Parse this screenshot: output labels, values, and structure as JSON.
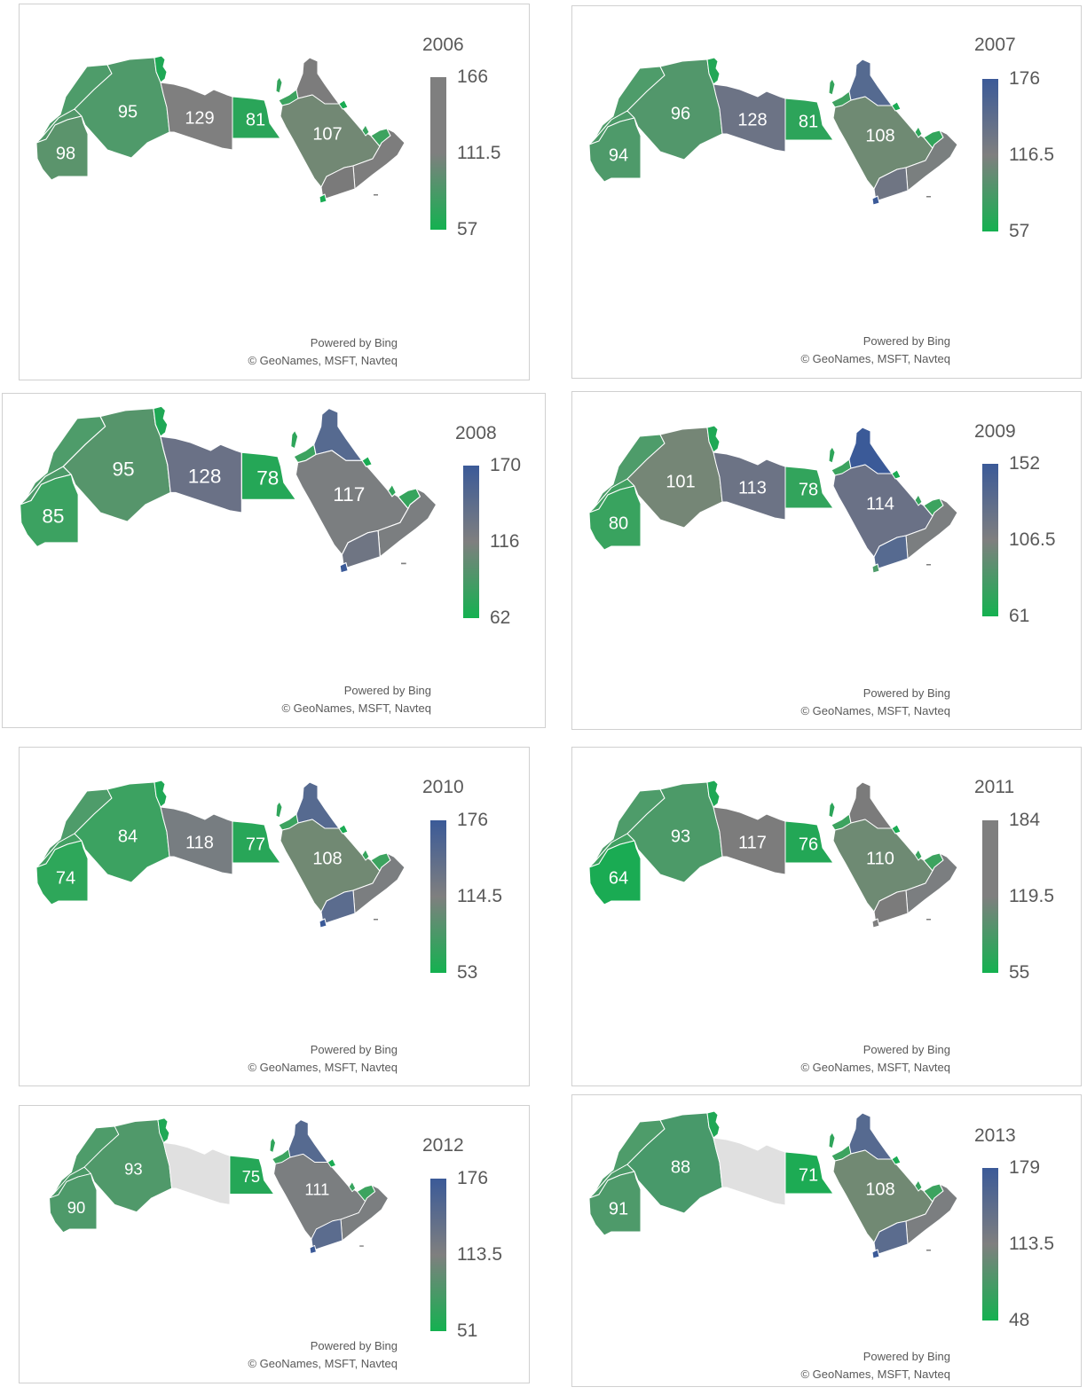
{
  "credits": {
    "line1": "Powered by Bing",
    "line2": "© GeoNames, MSFT, Navteq"
  },
  "colors": {
    "low": "#14b150",
    "mid": "#7f7f7f",
    "high": "#3b5a98",
    "no_data": "#e0e0e0"
  },
  "maps": [
    {
      "year": "2006",
      "legend": {
        "max": "166",
        "mid": "111.5",
        "min": "57"
      },
      "legend_top_color": "#7f7f7f",
      "labels": {
        "mauritania": "98",
        "algeria": "95",
        "libya": "129",
        "egypt": "81",
        "saudi": "107"
      },
      "colors": {
        "morocco": "#4e9c6a",
        "w_sahara": "#52986a",
        "mauritania": "#5b946c",
        "algeria": "#4f9a6a",
        "tunisia": "#1fa855",
        "libya": "#7f7f7f",
        "egypt": "#2aa559",
        "levant": "#34a45c",
        "jordan": "#3ca35f",
        "iraq": "#7c7c7c",
        "saudi": "#728874",
        "kuwait": "#1aab53",
        "qatar": "#38a45f",
        "uae": "#3ca35f",
        "oman": "#7d7d7d",
        "yemen": "#7a7a7a",
        "comoros": "#1aab53"
      }
    },
    {
      "year": "2007",
      "legend": {
        "max": "176",
        "mid": "116.5",
        "min": "57"
      },
      "legend_top_color": "#3b5a98",
      "labels": {
        "mauritania": "94",
        "algeria": "96",
        "libya": "128",
        "egypt": "81",
        "saudi": "108"
      },
      "colors": {
        "morocco": "#4e9c6a",
        "w_sahara": "#4c9a68",
        "mauritania": "#4e9a6a",
        "algeria": "#52976b",
        "tunisia": "#23a756",
        "libya": "#6c7385",
        "egypt": "#2da45a",
        "levant": "#35a45c",
        "jordan": "#40a160",
        "iraq": "#556a90",
        "saudi": "#6f8a73",
        "kuwait": "#1aab53",
        "qatar": "#2ea75a",
        "uae": "#32a55b",
        "oman": "#7a7f7f",
        "yemen": "#6f7583",
        "comoros": "#3b5a98"
      }
    },
    {
      "year": "2008",
      "legend": {
        "max": "170",
        "mid": "116",
        "min": "62"
      },
      "legend_top_color": "#3b5a98",
      "labels": {
        "mauritania": "85",
        "algeria": "95",
        "libya": "128",
        "egypt": "78",
        "saudi": "117"
      },
      "colors": {
        "morocco": "#4e9c6a",
        "w_sahara": "#4c9a68",
        "mauritania": "#3ca261",
        "algeria": "#56956b",
        "tunisia": "#1fa855",
        "libya": "#6a7186",
        "egypt": "#25a757",
        "levant": "#2da55a",
        "jordan": "#3ca35f",
        "iraq": "#566a90",
        "saudi": "#7b7e80",
        "kuwait": "#1aab53",
        "qatar": "#30a55b",
        "uae": "#36a45d",
        "oman": "#7b7e80",
        "yemen": "#6f7583",
        "comoros": "#3b5a98"
      }
    },
    {
      "year": "2009",
      "legend": {
        "max": "152",
        "mid": "106.5",
        "min": "61"
      },
      "legend_top_color": "#3b5a98",
      "labels": {
        "mauritania": "80",
        "algeria": "101",
        "libya": "113",
        "egypt": "78",
        "saudi": "114"
      },
      "colors": {
        "morocco": "#4e9c6a",
        "w_sahara": "#42a062",
        "mauritania": "#39a35f",
        "algeria": "#758676",
        "tunisia": "#1fa855",
        "libya": "#6c7385",
        "egypt": "#32a45c",
        "levant": "#2ea55a",
        "jordan": "#3ca35f",
        "iraq": "#3b5a98",
        "saudi": "#6a7186",
        "kuwait": "#1aab53",
        "qatar": "#38a45f",
        "uae": "#3ca35f",
        "oman": "#7b7e80",
        "yemen": "#566a90",
        "comoros": "#4e9c6a"
      }
    },
    {
      "year": "2010",
      "legend": {
        "max": "176",
        "mid": "114.5",
        "min": "53"
      },
      "legend_top_color": "#3b5a98",
      "labels": {
        "mauritania": "74",
        "algeria": "84",
        "libya": "118",
        "egypt": "77",
        "saudi": "108"
      },
      "colors": {
        "morocco": "#4e9c6a",
        "w_sahara": "#43a063",
        "mauritania": "#2ea75a",
        "algeria": "#3ca261",
        "tunisia": "#1fa855",
        "libya": "#777d81",
        "egypt": "#28a658",
        "levant": "#30a55b",
        "jordan": "#3ca35f",
        "iraq": "#566a90",
        "saudi": "#718973",
        "kuwait": "#1aab53",
        "qatar": "#36a45d",
        "uae": "#3ca35f",
        "oman": "#7b7e80",
        "yemen": "#5b6c8e",
        "comoros": "#3b5a98"
      }
    },
    {
      "year": "2011",
      "legend": {
        "max": "184",
        "mid": "119.5",
        "min": "55"
      },
      "legend_top_color": "#7f7f7f",
      "labels": {
        "mauritania": "64",
        "algeria": "93",
        "libya": "117",
        "egypt": "76",
        "saudi": "110"
      },
      "colors": {
        "morocco": "#4e9c6a",
        "w_sahara": "#40a061",
        "mauritania": "#1aab53",
        "algeria": "#4c9a68",
        "tunisia": "#1fa855",
        "libya": "#7c7c7c",
        "egypt": "#23a756",
        "levant": "#2da55a",
        "jordan": "#3ca35f",
        "iraq": "#7b7b7b",
        "saudi": "#6e8a73",
        "kuwait": "#1aab53",
        "qatar": "#38a45f",
        "uae": "#3ca35f",
        "oman": "#7b7e80",
        "yemen": "#7b7b7b",
        "comoros": "#7f7f7f"
      }
    },
    {
      "year": "2012",
      "legend": {
        "max": "176",
        "mid": "113.5",
        "min": "51"
      },
      "legend_top_color": "#3b5a98",
      "labels": {
        "mauritania": "90",
        "algeria": "93",
        "egypt": "75",
        "saudi": "111"
      },
      "colors": {
        "morocco": "#4e9c6a",
        "w_sahara": "#4c9a68",
        "mauritania": "#4e9a6a",
        "algeria": "#50996a",
        "tunisia": "#1fa855",
        "libya": "#e0e0e0",
        "egypt": "#25a757",
        "levant": "#30a55b",
        "jordan": "#3ca35f",
        "iraq": "#566a90",
        "saudi": "#7b7e80",
        "kuwait": "#1aab53",
        "qatar": "#38a45f",
        "uae": "#3ca35f",
        "oman": "#7b7e80",
        "yemen": "#5b6c8e",
        "comoros": "#3b5a98"
      }
    },
    {
      "year": "2013",
      "legend": {
        "max": "179",
        "mid": "113.5",
        "min": "48"
      },
      "legend_top_color": "#3b5a98",
      "labels": {
        "mauritania": "91",
        "algeria": "88",
        "egypt": "71",
        "saudi": "108"
      },
      "colors": {
        "morocco": "#4e9c6a",
        "w_sahara": "#4c9a68",
        "mauritania": "#4e9a6a",
        "algeria": "#48996a",
        "tunisia": "#1fa855",
        "libya": "#e0e0e0",
        "egypt": "#1dab54",
        "levant": "#30a55b",
        "jordan": "#3ca35f",
        "iraq": "#566a90",
        "saudi": "#718973",
        "kuwait": "#1aab53",
        "qatar": "#38a45f",
        "uae": "#3ca35f",
        "oman": "#7b7e80",
        "yemen": "#5b6c8e",
        "comoros": "#3b5a98"
      }
    }
  ]
}
